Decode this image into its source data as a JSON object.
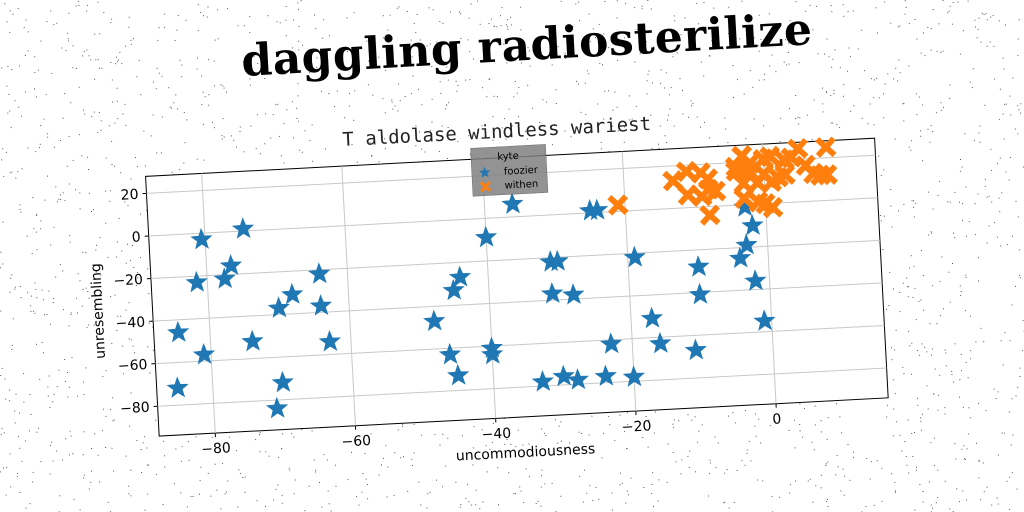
{
  "title": "daggling radiosterilize",
  "chart_data": {
    "type": "scatter",
    "subtitle": "T aldolase windless wariest",
    "xlabel": "uncommodiousness",
    "ylabel": "unresembling",
    "xlim": [
      -88,
      16
    ],
    "ylim": [
      -94,
      28
    ],
    "xticks": [
      -80,
      -60,
      -40,
      -20,
      0
    ],
    "yticks": [
      20,
      0,
      -20,
      -40,
      -60,
      -80
    ],
    "xtick_labels": [
      "−80",
      "−60",
      "−40",
      "−20",
      "0"
    ],
    "ytick_labels": [
      "20",
      "0",
      "−20",
      "−40",
      "−60",
      "−80"
    ],
    "grid": true,
    "legend": {
      "title": "kyte",
      "placement": "top-center"
    },
    "colors": {
      "foozier": "#1f77b4",
      "withen": "#ff7f0e"
    },
    "series": [
      {
        "name": "foozier",
        "marker": "star",
        "points": [
          [
            -80.5,
            -3
          ],
          [
            -81.5,
            -23
          ],
          [
            -76.5,
            -16
          ],
          [
            -77.5,
            -22
          ],
          [
            -74.5,
            1
          ],
          [
            -84.5,
            -46
          ],
          [
            -85,
            -72
          ],
          [
            -81,
            -57
          ],
          [
            -74,
            -52
          ],
          [
            -70,
            -37
          ],
          [
            -68,
            -31
          ],
          [
            -64,
            -22
          ],
          [
            -64,
            -37
          ],
          [
            -63,
            -54
          ],
          [
            -70,
            -72
          ],
          [
            -71,
            -84
          ],
          [
            -48,
            -47
          ],
          [
            -45,
            -33
          ],
          [
            -44,
            -27
          ],
          [
            -46,
            -63
          ],
          [
            -45,
            -73
          ],
          [
            -40,
            -61
          ],
          [
            -40,
            -64
          ],
          [
            -40,
            -9
          ],
          [
            -36,
            6
          ],
          [
            -33,
            -78
          ],
          [
            -31,
            -22
          ],
          [
            -30,
            -22
          ],
          [
            -31,
            -37
          ],
          [
            -28,
            -38
          ],
          [
            -30,
            -76
          ],
          [
            -28,
            -78
          ],
          [
            -24,
            -77
          ],
          [
            -23,
            -62
          ],
          [
            -25,
            1
          ],
          [
            -24,
            1
          ],
          [
            -19,
            -22
          ],
          [
            -20,
            -78
          ],
          [
            -17,
            -51
          ],
          [
            -16,
            -63
          ],
          [
            -10,
            -28
          ],
          [
            -10,
            -41
          ],
          [
            -11,
            -67
          ],
          [
            -4,
            -25
          ],
          [
            -3,
            -1
          ],
          [
            -3,
            -19
          ],
          [
            -2,
            -10
          ],
          [
            -2,
            -36
          ],
          [
            -1,
            -55
          ]
        ]
      },
      {
        "name": "withen",
        "marker": "x",
        "points": [
          [
            -21,
            3
          ],
          [
            -13,
            13
          ],
          [
            -11,
            17
          ],
          [
            -9,
            16
          ],
          [
            -11,
            6
          ],
          [
            -9,
            5
          ],
          [
            -8,
            13
          ],
          [
            -8,
            8
          ],
          [
            -7,
            7
          ],
          [
            -8,
            -4
          ],
          [
            -4,
            16
          ],
          [
            -3,
            10
          ],
          [
            -2,
            15
          ],
          [
            -3,
            3
          ],
          [
            -3,
            23
          ],
          [
            -4,
            18
          ],
          [
            -2,
            19
          ],
          [
            -3,
            23
          ],
          [
            -1,
            1
          ],
          [
            0,
            0
          ],
          [
            -1,
            10
          ],
          [
            0,
            14
          ],
          [
            1,
            10
          ],
          [
            0,
            21
          ],
          [
            1,
            22
          ],
          [
            1,
            -2
          ],
          [
            3,
            20
          ],
          [
            2,
            12
          ],
          [
            3,
            13
          ],
          [
            4,
            21
          ],
          [
            5,
            25
          ],
          [
            6,
            17
          ],
          [
            7,
            13
          ],
          [
            8,
            12
          ],
          [
            9,
            12
          ],
          [
            9,
            25
          ]
        ]
      }
    ]
  }
}
